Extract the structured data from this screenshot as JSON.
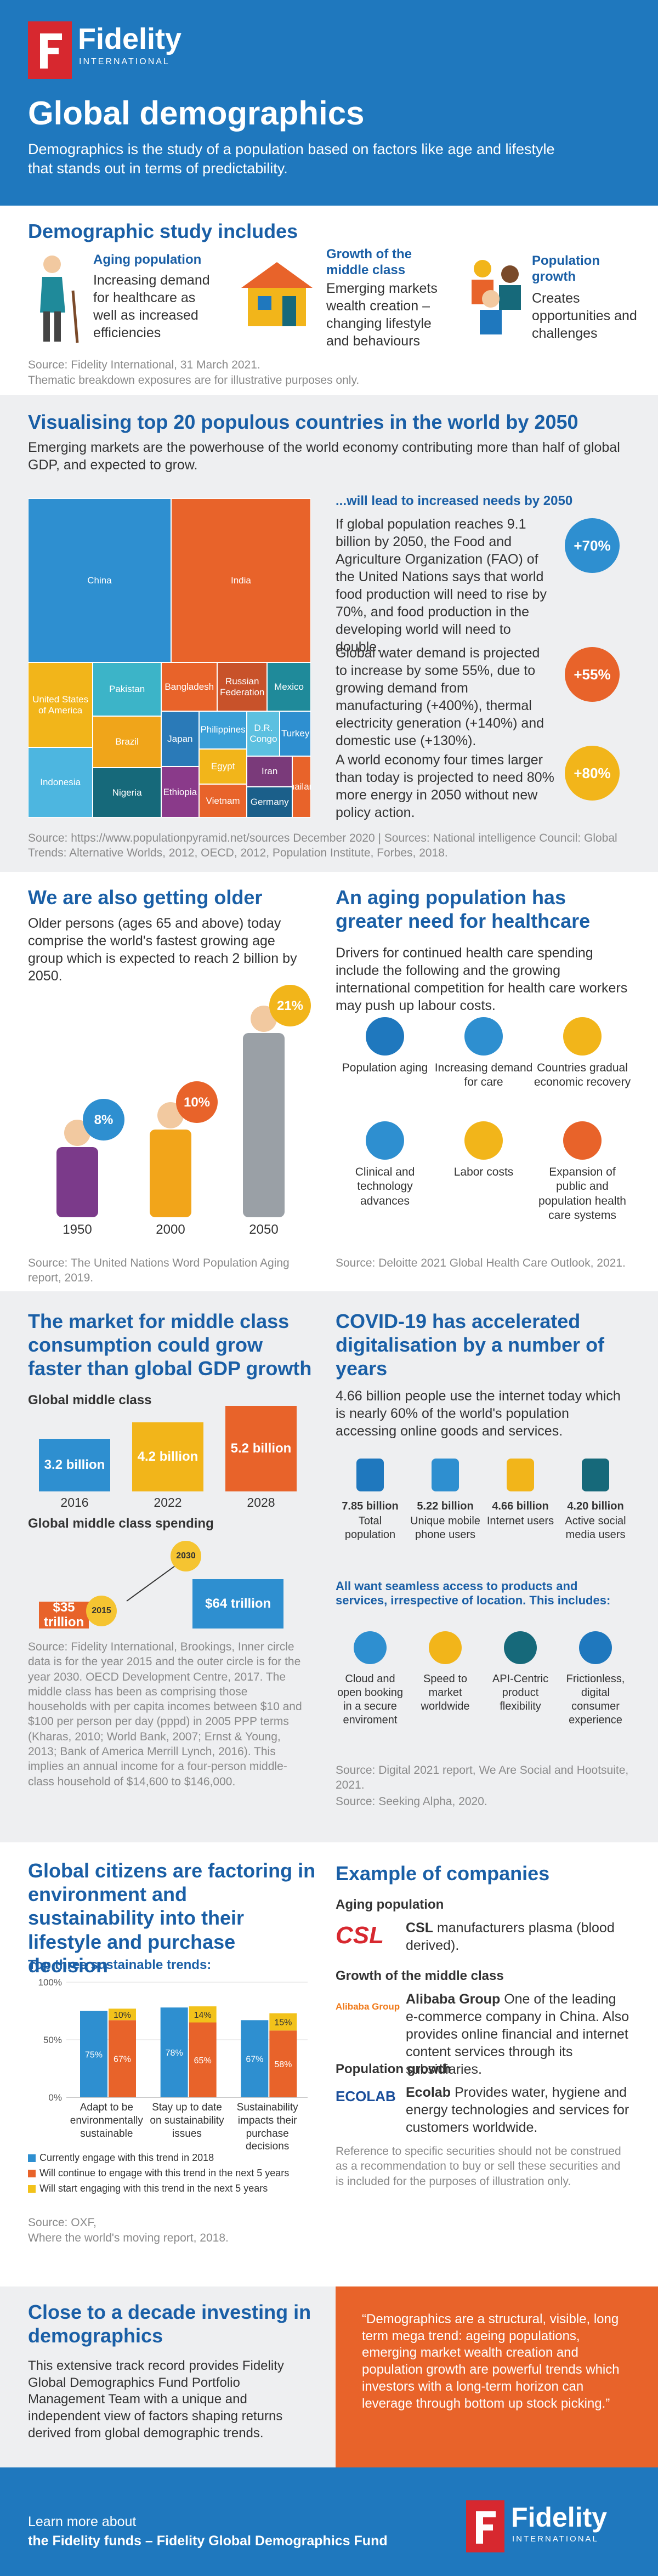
{
  "header": {
    "logo": "Fidelity",
    "logo_sub": "INTERNATIONAL",
    "title": "Global demographics",
    "subtitle": "Demographics is the study of a population based on factors like age and lifestyle that stands out in terms of predictability."
  },
  "study": {
    "title": "Demographic study includes",
    "items": [
      {
        "title": "Aging population",
        "text": "Increasing demand for healthcare as well as increased efficiencies"
      },
      {
        "title": "Growth of the middle class",
        "text": "Emerging markets wealth creation – changing lifestyle and behaviours"
      },
      {
        "title": "Population growth",
        "text": "Creates opportunities and challenges"
      }
    ],
    "source": [
      "Source: Fidelity International, 31 March 2021.",
      "Thematic breakdown exposures are for illustrative purposes only."
    ]
  },
  "populous": {
    "title": "Visualising top 20 populous countries in the world by 2050",
    "intro": "Emerging markets are the powerhouse of the world economy contributing more than half of global GDP, and expected to grow.",
    "needs_title": "...will lead to increased needs by 2050",
    "needs": [
      {
        "text": "If global population reaches 9.1 billion by 2050, the Food and Agriculture Organization (FAO) of the United Nations says that world food production will need to rise by 70%, and food production in the developing world will need to double.",
        "badge": "+70%"
      },
      {
        "text": "Global water demand is projected to increase by some 55%, due to growing demand from manufacturing (+400%), thermal electricity generation (+140%) and domestic use (+130%).",
        "badge": "+55%"
      },
      {
        "text": "A world economy four times larger than today is projected to need 80% more energy in 2050 without new policy action.",
        "badge": "+80%"
      }
    ],
    "source": "Source: https://www.populationpyramid.net/sources December 2020 | Sources: National intelligence Council: Global Trends: Alternative Worlds, 2012, OECD, 2012, Population Institute, Forbes, 2018."
  },
  "older": {
    "title": "We are also getting older",
    "text": "Older persons (ages 65 and above) today comprise the world's fastest growing age group which is expected to reach 2 billion by 2050.",
    "source": "Source: The United Nations Word Population Aging report, 2019."
  },
  "healthcare": {
    "title": "An aging population has greater need for healthcare",
    "text": "Drivers for continued health care spending include the following and the growing international competition for health care workers may push up labour costs.",
    "drivers": [
      "Population aging",
      "Increasing demand for care",
      "Countries gradual economic recovery",
      "Clinical and technology advances",
      "Labor costs",
      "Expansion of public and population health care systems"
    ],
    "source": "Source: Deloitte 2021 Global Health Care Outlook, 2021."
  },
  "middle": {
    "title": "The market for middle class consumption could grow faster than global GDP growth",
    "source": "Source: Fidelity International, Brookings, Inner circle data is for the year 2015 and the outer circle is for the year 2030. OECD Development Centre, 2017. The middle class has been as comprising those households with per capita incomes between $10 and $100 per person per day (pppd) in 2005 PPP terms (Kharas, 2010; World Bank, 2007; Ernst & Young, 2013; Bank of America Merrill Lynch, 2016). This implies an annual income for a four-person middle-class household of $14,600 to $146,000."
  },
  "covid": {
    "title": "COVID-19 has accelerated digitalisation by a number of years",
    "text": "4.66 billion people use the internet today which is nearly 60% of the world's population accessing online goods and services.",
    "stats": [
      {
        "value": "7.85 billion",
        "label": "Total population"
      },
      {
        "value": "5.22 billion",
        "label": "Unique mobile phone users"
      },
      {
        "value": "4.66 billion",
        "label": "Internet users"
      },
      {
        "value": "4.20 billion",
        "label": "Active social media users"
      }
    ],
    "access_title": "All want seamless access to products and services, irrespective of location. This includes:",
    "access": [
      "Cloud and open booking in a secure enviroment",
      "Speed to market worldwide",
      "API-Centric product flexibility",
      "Frictionless, digital consumer experience"
    ],
    "source": [
      "Source: Digital 2021 report, We Are Social and Hootsuite, 2021.",
      "Source: Seeking Alpha, 2020."
    ]
  },
  "sustain": {
    "title": "Global citizens are factoring in environment and sustainability into their lifestyle and purchase decision",
    "source": [
      "Source: OXF,",
      "Where the world's moving report, 2018."
    ]
  },
  "companies": {
    "title": "Example of companies",
    "groups": [
      {
        "heading": "Aging population",
        "logo": "CSL",
        "name": "CSL",
        "text": "manufacturers plasma (blood derived)."
      },
      {
        "heading": "Growth of the middle class",
        "logo": "Alibaba Group",
        "name": "Alibaba Group",
        "text": "One of the leading e-commerce company in China. Also provides online financial and internet content services through its subsidiaries."
      },
      {
        "heading": "Population growth",
        "logo": "ECOLAB",
        "name": "Ecolab",
        "text": "Provides water, hygiene and energy technologies and services for customers worldwide."
      }
    ],
    "disclaimer": "Reference to specific securities should not be construed as a recommendation to buy or sell these securities and is included for the purposes of illustration only."
  },
  "decade": {
    "title": "Close to a decade investing in demographics",
    "text": "This extensive track record provides Fidelity Global Demographics Fund Portfolio Management Team with a unique and independent view of factors shaping returns derived from global demographic trends.",
    "quote": "“Demographics are a structural, visible, long term mega trend: ageing populations, emerging market wealth creation and population growth are powerful trends which investors with a long-term horizon can leverage through bottom up stock picking.”"
  },
  "footer": {
    "line1": "Learn more about",
    "line2": "the Fidelity funds – Fidelity Global Demographics Fund",
    "logo": "Fidelity",
    "logo_sub": "INTERNATIONAL"
  },
  "chart_data": [
    {
      "type": "treemap",
      "categories": [
        "China",
        "India",
        "United States of America",
        "Indonesia",
        "Pakistan",
        "Brazil",
        "Nigeria",
        "Bangladesh",
        "Russian Federation",
        "Mexico",
        "Japan",
        "Ethiopia",
        "Philippines",
        "Egypt",
        "Vietnam",
        "D.R. Congo",
        "Turkey",
        "Iran",
        "Germany",
        "Thailand"
      ],
      "values": [
        1411,
        1380,
        331,
        273,
        220,
        212,
        206,
        164,
        145,
        128,
        126,
        115,
        109,
        102,
        97,
        89,
        84,
        84,
        83,
        69
      ],
      "colors": [
        "#2e8fd0",
        "#e8632a",
        "#f2b51a",
        "#4db6e0",
        "#3cb4c8",
        "#f0a51a",
        "#16697a",
        "#e8632a",
        "#c8522a",
        "#1f8a9a",
        "#2a7ab8",
        "#8a3a8a",
        "#3aa0d8",
        "#f2b51a",
        "#e8632a",
        "#5cc0e0",
        "#2e8fd0",
        "#7a3a7a",
        "#1b5f8a",
        "#e8632a"
      ]
    },
    {
      "type": "figures",
      "categories": [
        "1950",
        "2000",
        "2050"
      ],
      "values": [
        8,
        10,
        21
      ],
      "value_labels": [
        "8%",
        "10%",
        "21%"
      ],
      "colors": [
        "#2e8fd0",
        "#e8632a",
        "#f2b51a"
      ]
    },
    {
      "type": "bar",
      "title": "Global middle class",
      "categories": [
        "2016",
        "2022",
        "2028"
      ],
      "values": [
        3.2,
        4.2,
        5.2
      ],
      "value_labels": [
        "3.2 billion",
        "4.2 billion",
        "5.2 billion"
      ],
      "colors": [
        "#2e8fd0",
        "#f2b51a",
        "#e8632a"
      ]
    },
    {
      "type": "money",
      "title": "Global middle class spending",
      "categories": [
        "2015",
        "2030"
      ],
      "values": [
        35,
        64
      ],
      "value_labels": [
        "$35 trillion",
        "$64 trillion"
      ],
      "colors": [
        "#e8632a",
        "#2e8fd0"
      ]
    },
    {
      "type": "bar",
      "title": "Top three sustainable trends:",
      "categories": [
        "Adapt to be environmentally sustainable",
        "Stay up to date on sustainability issues",
        "Sustainability impacts their purchase decisions"
      ],
      "series": [
        {
          "name": "Currently engage with this trend in 2018",
          "color": "#2e8fd0",
          "values": [
            75,
            78,
            67
          ],
          "value_labels": [
            "75%",
            "78%",
            "67%"
          ]
        },
        {
          "name": "Will continue to engage with this trend in the next 5 years",
          "color": "#e8632a",
          "values": [
            67,
            65,
            58
          ],
          "value_labels": [
            "67%",
            "65%",
            "58%"
          ]
        },
        {
          "name": "Will start engaging with this trend in the next 5 years",
          "color": "#f2c21a",
          "values": [
            10,
            14,
            15
          ],
          "value_labels": [
            "10%",
            "14%",
            "15%"
          ]
        }
      ],
      "ylim": [
        0,
        100
      ],
      "yticks": [
        {
          "value": 0,
          "label": "0%"
        },
        {
          "value": 50,
          "label": "50%"
        },
        {
          "value": 100,
          "label": "100%"
        }
      ],
      "grid": true
    }
  ]
}
